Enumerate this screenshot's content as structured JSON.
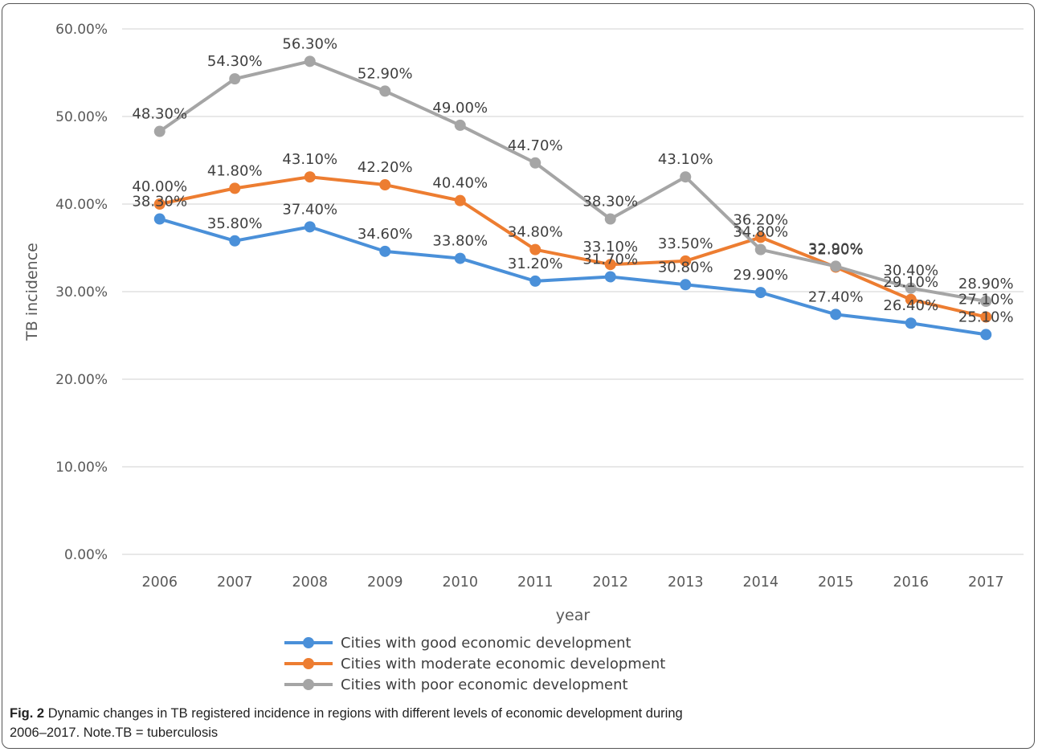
{
  "chart_data": {
    "type": "line",
    "ylabel": "TB incidence",
    "xlabel": "year",
    "ylim": [
      0,
      60
    ],
    "yticks": [
      "0.00%",
      "10.00%",
      "20.00%",
      "30.00%",
      "40.00%",
      "50.00%",
      "60.00%"
    ],
    "categories": [
      "2006",
      "2007",
      "2008",
      "2009",
      "2010",
      "2011",
      "2012",
      "2013",
      "2014",
      "2015",
      "2016",
      "2017"
    ],
    "grid": true,
    "legend": "bottom",
    "series": [
      {
        "name": "Cities with good economic development",
        "color": "#4a90d9",
        "values": [
          38.3,
          35.8,
          37.4,
          34.6,
          33.8,
          31.2,
          31.7,
          30.8,
          29.9,
          27.4,
          26.4,
          25.1
        ],
        "labels": [
          "38.30%",
          "35.80%",
          "37.40%",
          "34.60%",
          "33.80%",
          "31.20%",
          "31.70%",
          "30.80%",
          "29.90%",
          "27.40%",
          "26.40%",
          "25.10%"
        ]
      },
      {
        "name": "Cities with moderate economic development",
        "color": "#ed7d31",
        "values": [
          40.0,
          41.8,
          43.1,
          42.2,
          40.4,
          34.8,
          33.1,
          33.5,
          36.2,
          32.8,
          29.1,
          27.1
        ],
        "labels": [
          "40.00%",
          "41.80%",
          "43.10%",
          "42.20%",
          "40.40%",
          "34.80%",
          "33.10%",
          "33.50%",
          "36.20%",
          "32.80%",
          "29.10%",
          "27.10%"
        ]
      },
      {
        "name": "Cities with poor economic development",
        "color": "#a5a5a5",
        "values": [
          48.3,
          54.3,
          56.3,
          52.9,
          49.0,
          44.7,
          38.3,
          43.1,
          34.8,
          32.9,
          30.4,
          28.9
        ],
        "labels": [
          "48.30%",
          "54.30%",
          "56.30%",
          "52.90%",
          "49.00%",
          "44.70%",
          "38.30%",
          "43.10%",
          "34.80%",
          "32.90%",
          "30.40%",
          "28.90%"
        ]
      }
    ]
  },
  "caption": {
    "fig_label": "Fig. 2",
    "text": "Dynamic changes in TB registered incidence in regions with different levels of economic development during",
    "text_line2": "2006–2017. Note.TB = tuberculosis"
  }
}
